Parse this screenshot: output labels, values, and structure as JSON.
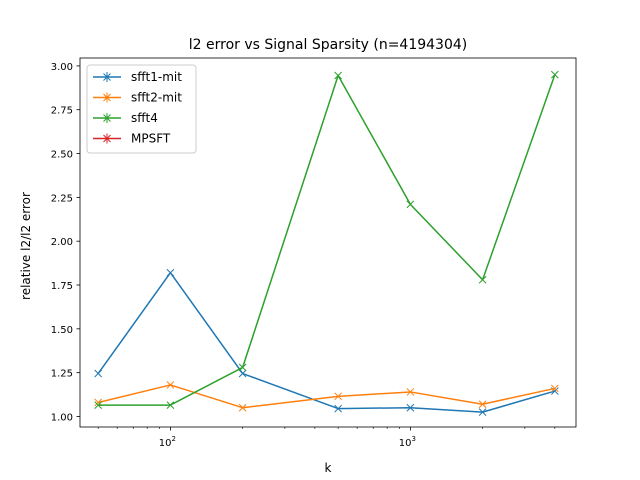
{
  "chart_data": {
    "type": "line",
    "title": "l2 error vs Signal Sparsity (n=4194304)",
    "xlabel": "k",
    "ylabel": "relative l2/l2 error",
    "x_scale": "log",
    "xlim": [
      42,
      4900
    ],
    "ylim": [
      0.94,
      3.045
    ],
    "x_ticks": [
      100,
      1000
    ],
    "x_tick_labels": [
      {
        "base": "10",
        "exp": "2"
      },
      {
        "base": "10",
        "exp": "3"
      }
    ],
    "y_ticks": [
      1.0,
      1.25,
      1.5,
      1.75,
      2.0,
      2.25,
      2.5,
      2.75,
      3.0
    ],
    "y_tick_labels": [
      "1.00",
      "1.25",
      "1.50",
      "1.75",
      "2.00",
      "2.25",
      "2.50",
      "2.75",
      "3.00"
    ],
    "grid": false,
    "legend_position": "upper-left",
    "series": [
      {
        "name": "sfft1-mit",
        "color": "#1f77b4",
        "x": [
          50,
          100,
          200,
          500,
          1000,
          2000,
          4000
        ],
        "y": [
          1.245,
          1.82,
          1.245,
          1.045,
          1.05,
          1.025,
          1.145
        ]
      },
      {
        "name": "sfft2-mit",
        "color": "#ff7f0e",
        "x": [
          50,
          100,
          200,
          500,
          1000,
          2000,
          4000
        ],
        "y": [
          1.08,
          1.18,
          1.05,
          1.115,
          1.14,
          1.07,
          1.16
        ]
      },
      {
        "name": "sfft4",
        "color": "#2ca02c",
        "x": [
          50,
          100,
          200,
          500,
          1000,
          2000,
          4000
        ],
        "y": [
          1.065,
          1.065,
          1.28,
          2.945,
          2.21,
          1.78,
          2.95
        ]
      },
      {
        "name": "MPSFT",
        "color": "#d62728",
        "x": [],
        "y": []
      }
    ]
  }
}
